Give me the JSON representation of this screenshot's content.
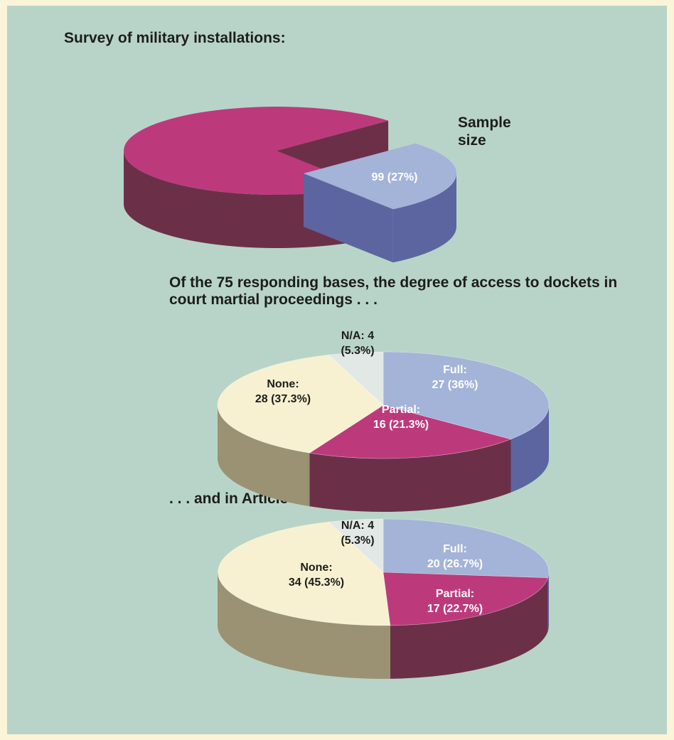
{
  "colors": {
    "background": "#b8d4c8",
    "border": "#fbf4d8",
    "magenta": "#bc3a7c",
    "magenta_side": "#6b3048",
    "blue": "#a4b3d8",
    "blue_side": "#5c65a0",
    "cream": "#f7f1d2",
    "cream_side": "#9a9272",
    "gray": "#e2e8e6",
    "gray_side": "#8a8e8c"
  },
  "title": "Survey of military installations:",
  "sample_label": "Sample size",
  "subtitle1": "Of the 75 responding bases, the degree of access to dockets in court martial proceedings . . .",
  "subtitle2": ". . . and in Article 32 hearings.",
  "chart_data": [
    {
      "type": "pie",
      "title": "Sample size",
      "slices": [
        {
          "label": "",
          "value": 73
        },
        {
          "label": "99 (27%)",
          "value": 27
        }
      ]
    },
    {
      "type": "pie",
      "title": "Of the 75 responding bases, the degree of access to dockets in court martial proceedings . . .",
      "slices": [
        {
          "label": [
            "Full:",
            "27 (36%)"
          ],
          "value": 27
        },
        {
          "label": [
            "Partial:",
            "16 (21.3%)"
          ],
          "value": 16
        },
        {
          "label": [
            "None:",
            "28 (37.3%)"
          ],
          "value": 28
        },
        {
          "label": [
            "N/A: 4",
            "(5.3%)"
          ],
          "value": 4
        }
      ]
    },
    {
      "type": "pie",
      "title": ". . . and in Article 32 hearings.",
      "slices": [
        {
          "label": [
            "Full:",
            "20 (26.7%)"
          ],
          "value": 20
        },
        {
          "label": [
            "Partial:",
            "17 (22.7%)"
          ],
          "value": 17
        },
        {
          "label": [
            "None:",
            "34 (45.3%)"
          ],
          "value": 34
        },
        {
          "label": [
            "N/A: 4",
            "(5.3%)"
          ],
          "value": 4
        }
      ]
    }
  ]
}
